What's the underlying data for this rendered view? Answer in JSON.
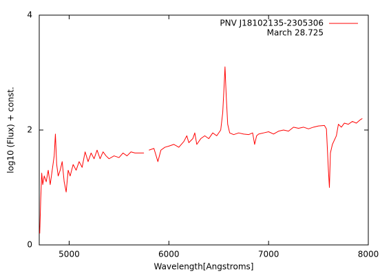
{
  "chart_data": {
    "type": "line",
    "xlabel": "Wavelength[Angstroms]",
    "ylabel": "log10 (Flux) + const.",
    "annotation": "March 28.725",
    "x": [
      4705,
      4715,
      4725,
      4735,
      4750,
      4770,
      4790,
      4810,
      4830,
      4850,
      4862,
      4875,
      4890,
      4910,
      4930,
      4950,
      4970,
      4990,
      5010,
      5040,
      5070,
      5100,
      5130,
      5160,
      5190,
      5220,
      5250,
      5280,
      5310,
      5340,
      5370,
      5400,
      5450,
      5500,
      5540,
      5580,
      5620,
      5660,
      5700,
      5750,
      5780,
      5800,
      5850,
      5890,
      5920,
      5960,
      6000,
      6050,
      6100,
      6150,
      6180,
      6200,
      6240,
      6260,
      6280,
      6320,
      6360,
      6400,
      6440,
      6480,
      6520,
      6540,
      6555,
      6563,
      6575,
      6590,
      6610,
      6650,
      6700,
      6750,
      6800,
      6840,
      6860,
      6880,
      6900,
      6950,
      7000,
      7050,
      7100,
      7150,
      7200,
      7250,
      7300,
      7350,
      7400,
      7450,
      7500,
      7560,
      7580,
      7600,
      7610,
      7620,
      7640,
      7680,
      7700,
      7730,
      7760,
      7800,
      7840,
      7880,
      7920,
      7940
    ],
    "series": [
      {
        "name": "PNV J18102135-2305306",
        "color": "#ff0000",
        "values": [
          0.2,
          0.8,
          1.25,
          1.05,
          1.2,
          1.1,
          1.3,
          1.05,
          1.3,
          1.55,
          1.93,
          1.4,
          1.2,
          1.3,
          1.45,
          1.1,
          0.92,
          1.3,
          1.2,
          1.4,
          1.3,
          1.45,
          1.35,
          1.62,
          1.45,
          1.6,
          1.5,
          1.65,
          1.5,
          1.62,
          1.55,
          1.5,
          1.55,
          1.52,
          1.6,
          1.55,
          1.62,
          1.6,
          1.6,
          1.6,
          null,
          1.65,
          1.68,
          1.45,
          1.65,
          1.7,
          1.72,
          1.75,
          1.7,
          1.8,
          1.9,
          1.78,
          1.85,
          1.95,
          1.75,
          1.85,
          1.9,
          1.85,
          1.95,
          1.9,
          2.0,
          2.3,
          2.8,
          3.1,
          2.6,
          2.1,
          1.95,
          1.92,
          1.95,
          1.93,
          1.92,
          1.95,
          1.75,
          1.9,
          1.93,
          1.95,
          1.97,
          1.93,
          1.98,
          2.0,
          1.98,
          2.05,
          2.03,
          2.05,
          2.02,
          2.05,
          2.07,
          2.08,
          2.02,
          1.3,
          1.0,
          1.6,
          1.75,
          1.9,
          2.1,
          2.05,
          2.12,
          2.1,
          2.15,
          2.12,
          2.18,
          2.2
        ]
      }
    ],
    "xlim": [
      4700,
      8000
    ],
    "ylim": [
      0,
      4
    ],
    "xticks": [
      5000,
      6000,
      7000,
      8000
    ],
    "yticks": [
      0,
      2,
      4
    ]
  }
}
